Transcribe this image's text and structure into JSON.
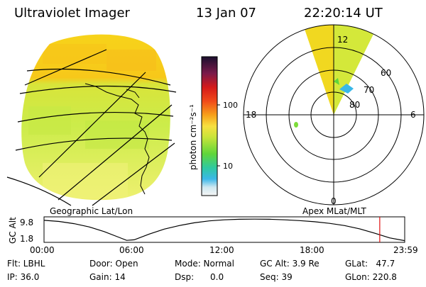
{
  "header": {
    "title": "Ultraviolet Imager",
    "date": "13 Jan 07",
    "time": "22:20:14 UT"
  },
  "geo_panel": {
    "caption": "Geographic Lat/Lon"
  },
  "colorbar": {
    "unit_label": "photon cm⁻²s⁻¹",
    "ticks": [
      "100",
      "10"
    ],
    "colors": [
      "#1a0f2e",
      "#7a1a4a",
      "#d41a1a",
      "#f04a1a",
      "#f79a1a",
      "#f7d31a",
      "#e8ec3a",
      "#a6e03a",
      "#5fd63a",
      "#2fc9a0",
      "#3ab8e8",
      "#cfe8f0",
      "#f2f2f2"
    ]
  },
  "polar_panel": {
    "caption": "Apex MLat/MLT",
    "hour_labels": [
      "12",
      "18",
      "6",
      "0"
    ],
    "lat_labels": [
      "60",
      "70",
      "80"
    ]
  },
  "timeline": {
    "y_axis_title": "GC Alt",
    "y_ticks": [
      "9.8",
      "1.8"
    ],
    "x_ticks": [
      "00:00",
      "06:00",
      "12:00",
      "18:00",
      "23:59"
    ],
    "marker_color": "#e01010"
  },
  "chart_data": {
    "type": "line",
    "title": "",
    "xlabel": "",
    "ylabel": "GC Alt",
    "x_units": "UT hours",
    "xlim": [
      0,
      24
    ],
    "ylim": [
      1.8,
      9.8
    ],
    "series": [
      {
        "x": [
          0.0,
          1.0,
          2.0,
          3.0,
          4.0,
          5.0,
          5.5,
          6.0,
          7.0,
          8.0,
          9.0,
          10.0,
          11.0,
          12.0,
          13.0,
          14.0,
          15.0,
          16.0,
          17.0,
          18.0,
          19.0,
          20.0,
          21.0,
          22.0,
          23.0,
          24.0
        ],
        "y": [
          9.3,
          8.9,
          8.1,
          6.9,
          5.2,
          3.1,
          2.0,
          2.2,
          4.3,
          6.1,
          7.4,
          8.4,
          9.1,
          9.5,
          9.7,
          9.75,
          9.7,
          9.5,
          9.2,
          8.8,
          8.2,
          7.4,
          6.2,
          4.6,
          2.9,
          1.9
        ]
      }
    ],
    "current_time_marker": 22.34
  },
  "status": {
    "flt": "Flt: LBHL",
    "ip": "IP: 36.0",
    "door": "Door: Open",
    "gain": "Gain: 14",
    "mode": "Mode: Normal",
    "dsp": "Dsp:      0.0",
    "gc_alt": "GC Alt: 3.9 Re",
    "seq": "Seq: 39",
    "glat": "GLat:   47.7",
    "glon": "GLon: 220.8"
  }
}
